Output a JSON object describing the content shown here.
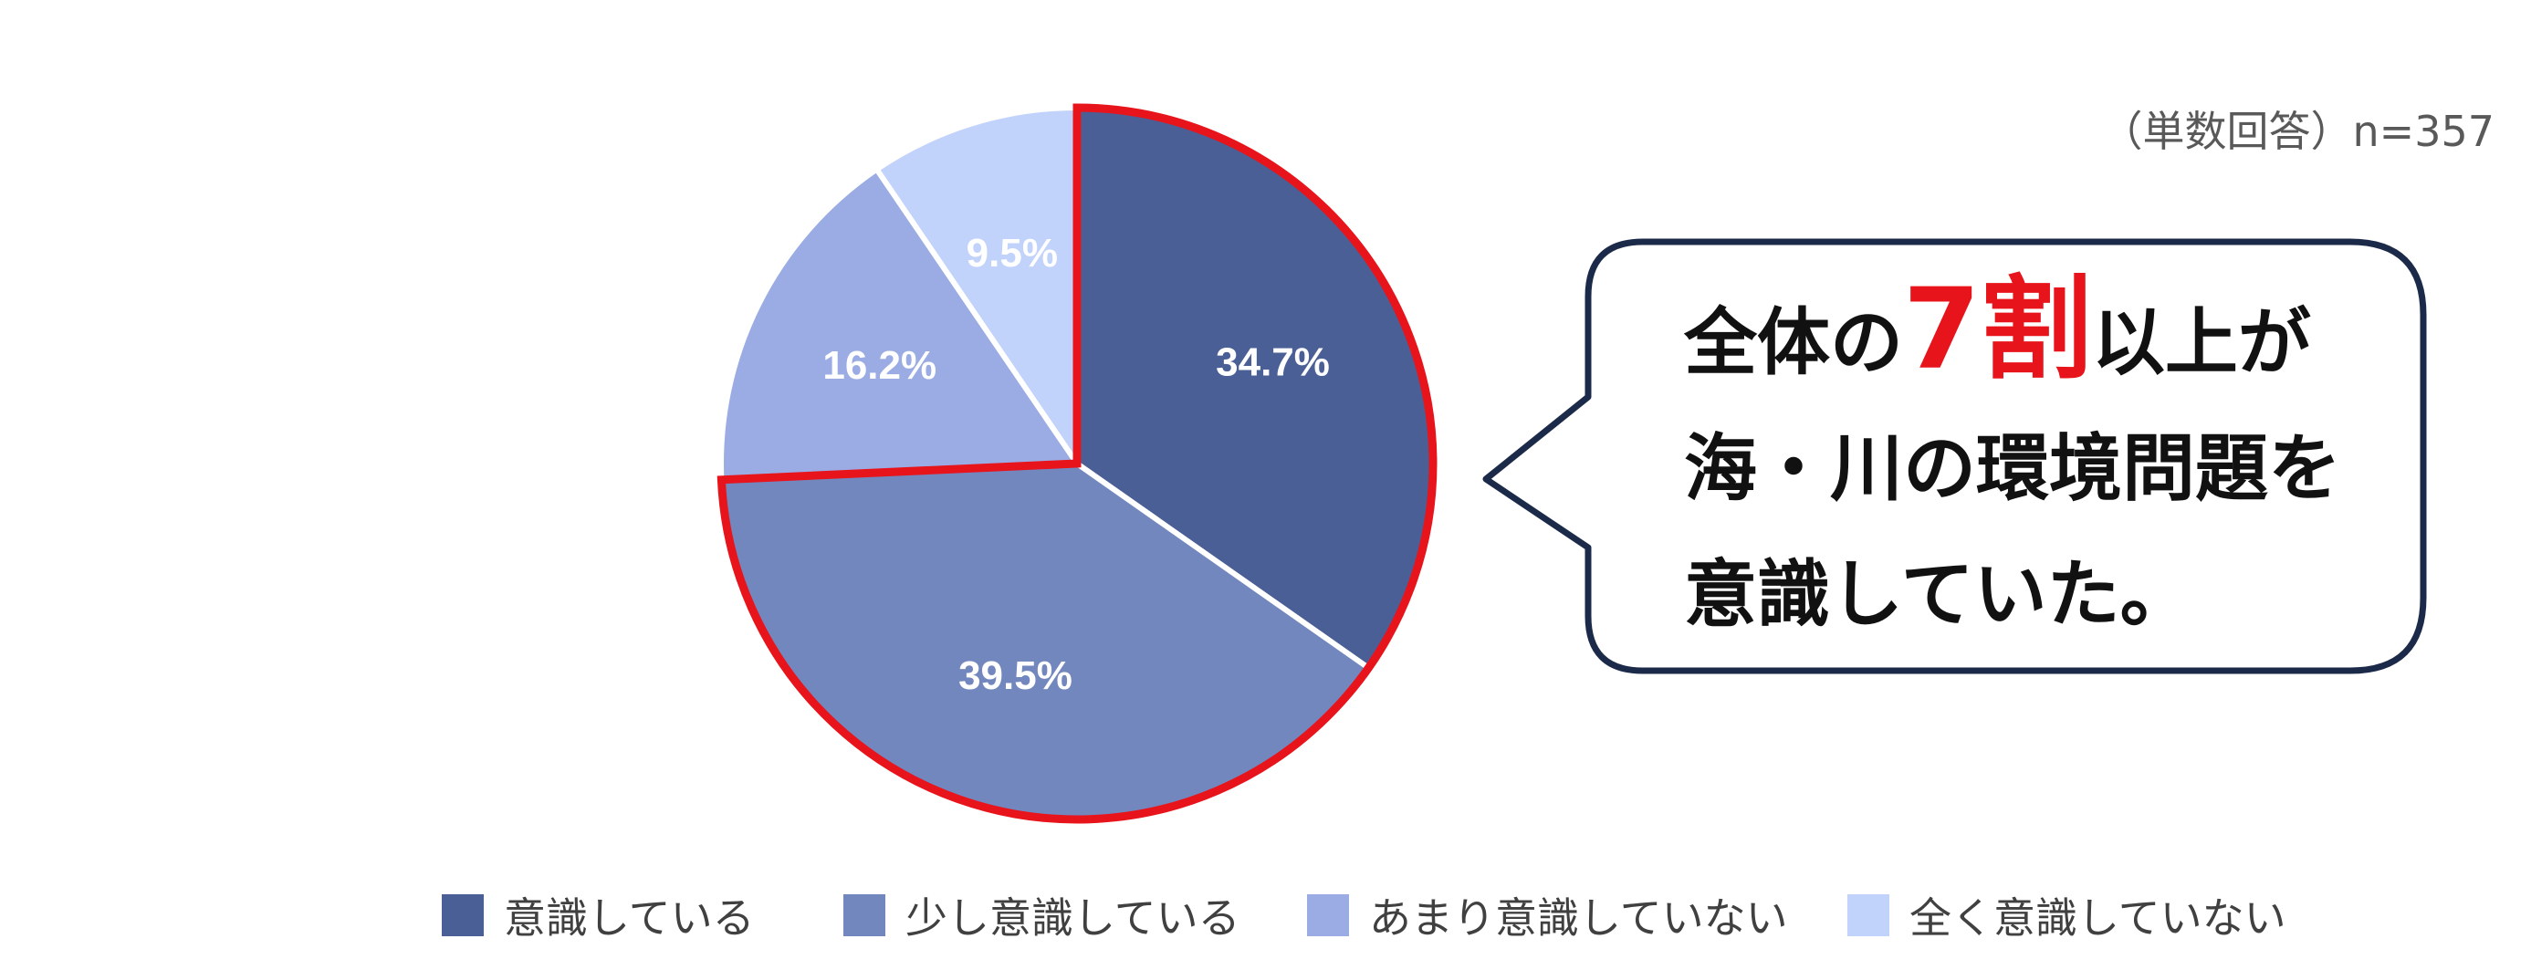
{
  "chart_data": {
    "type": "pie",
    "title": "",
    "note": "（単数回答）n=357",
    "slices": [
      {
        "label": "意識している",
        "value": 34.7,
        "display": "34.7%",
        "color": "#4a5f95"
      },
      {
        "label": "少し意識している",
        "value": 39.5,
        "display": "39.5%",
        "color": "#7387bf"
      },
      {
        "label": "あまり意識していない",
        "value": 16.2,
        "display": "16.2%",
        "color": "#9aace3"
      },
      {
        "label": "全く意識していない",
        "value": 9.5,
        "display": "9.5%",
        "color": "#c1d2fb"
      }
    ],
    "highlight": {
      "slices": [
        "意識している",
        "少し意識している"
      ],
      "color": "#e8141b"
    },
    "start_angle": "12 o'clock",
    "direction": "clockwise",
    "legend": "bottom"
  },
  "callout": {
    "border_color": "#1c2a4a",
    "line1_before": "全体の",
    "line1_highlight": "7割",
    "line1_after": "以上が",
    "line2": "海・川の環境問題を",
    "line3": "意識していた。"
  }
}
